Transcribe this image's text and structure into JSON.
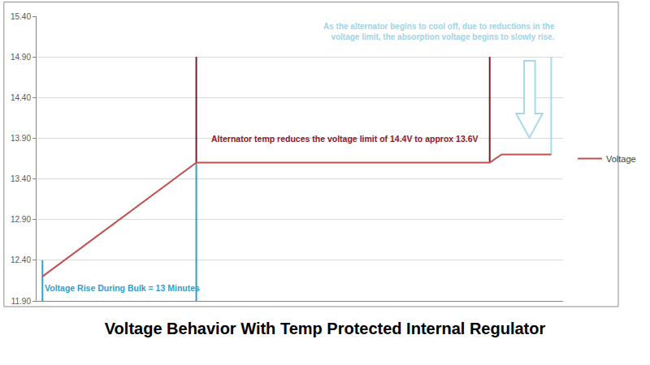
{
  "chart_data": {
    "type": "line",
    "title": "Voltage Behavior With Temp Protected Internal Regulator",
    "x": [
      0,
      13,
      37.8,
      38.8,
      43
    ],
    "series": [
      {
        "name": "Voltage",
        "color": "#c0504d",
        "values": [
          12.2,
          13.6,
          13.6,
          13.7,
          13.7
        ]
      }
    ],
    "xlim": [
      -0.5,
      44
    ],
    "ylim": [
      11.9,
      15.4
    ],
    "yticks": [
      {
        "value": 11.9,
        "label": "11.90"
      },
      {
        "value": 12.4,
        "label": "12.40"
      },
      {
        "value": 12.9,
        "label": "12.90"
      },
      {
        "value": 13.4,
        "label": "13.40"
      },
      {
        "value": 13.9,
        "label": "13.90"
      },
      {
        "value": 14.4,
        "label": "14.40"
      },
      {
        "value": 14.9,
        "label": "14.90"
      },
      {
        "value": 15.4,
        "label": "15.40"
      }
    ],
    "grid": true,
    "legend": "right",
    "tick_labels": "y",
    "reference_lines": [
      {
        "x": 0,
        "y": [
          11.9,
          12.4
        ],
        "color": "#2e9fd0"
      },
      {
        "x": 13,
        "y": [
          11.9,
          13.6
        ],
        "color": "#2e9fd0"
      },
      {
        "x": 13,
        "y": [
          13.6,
          14.9
        ],
        "color": "#7b1c2b"
      },
      {
        "x": 37.8,
        "y": [
          13.6,
          14.9
        ],
        "color": "#7b1c2b"
      },
      {
        "x": 43,
        "y": [
          13.7,
          14.9
        ],
        "color": "#a9d9e8"
      }
    ],
    "annotations": [
      {
        "lines": [
          "Alternator temp reduces the voltage limit of 14.4V to approx 13.6V"
        ],
        "color": "#8b1a2b"
      },
      {
        "lines": [
          "As the alternator begins to cool off, due to reductions in the",
          "voltage limit, the absorption voltage begins to slowly rise."
        ],
        "color": "#9fd3e6"
      },
      {
        "lines": [
          "Voltage Rise During Bulk = 13 Minutes"
        ],
        "color": "#2e9fd0"
      }
    ]
  }
}
